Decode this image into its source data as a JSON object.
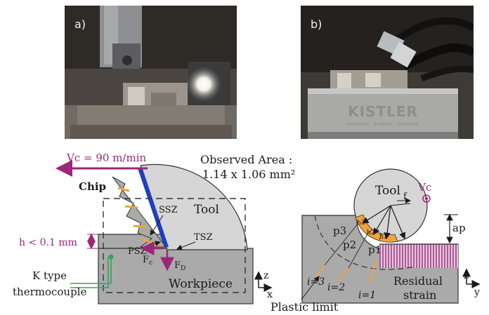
{
  "photos": {
    "a": {
      "label": "a)"
    },
    "b": {
      "label": "b)",
      "brand": "KISTLER",
      "tagline": "measure · analyze · innovate"
    }
  },
  "left_diagram": {
    "vc_label": "Vc = 90 m/min",
    "observed_area_line1": "Observed Area :",
    "observed_area_line2": "1.14 x 1.06 mm²",
    "chip_label": "Chip",
    "tool_label": "Tool",
    "ssz_label": "SSZ",
    "tsz_label": "TSZ",
    "psz_label": "PSZ",
    "h_label": "h < 0.1 mm",
    "fc_label": "F",
    "fc_sub": "c",
    "fd_label": "F",
    "fd_sub": "D",
    "thermo_line1": "K type",
    "thermo_line2": "thermocouple",
    "workpiece_label": "Workpiece",
    "axis_up": "z",
    "axis_right": "x"
  },
  "right_diagram": {
    "tool_label": "Tool",
    "vc_label": "Vc",
    "f_label": "f",
    "ap_label": "ap",
    "h_labels": [
      "h3",
      "h2",
      "h1"
    ],
    "p_labels": [
      "p3",
      "p2",
      "p1"
    ],
    "i_labels": [
      "i=3",
      "i=2",
      "i=1"
    ],
    "residual_line1": "Residual",
    "residual_line2": "strain",
    "plastic_limit": "Plastic limit",
    "axis_up": "z",
    "axis_right": "y"
  },
  "colors": {
    "magenta": "#9c2777",
    "chip_orange": "#f0a33a",
    "tool_grey": "#d6d6d6",
    "workpiece_grey": "#aaaaaa",
    "thermocouple_green": "#2fa84f",
    "chip_blue": "#1f3fbf"
  }
}
